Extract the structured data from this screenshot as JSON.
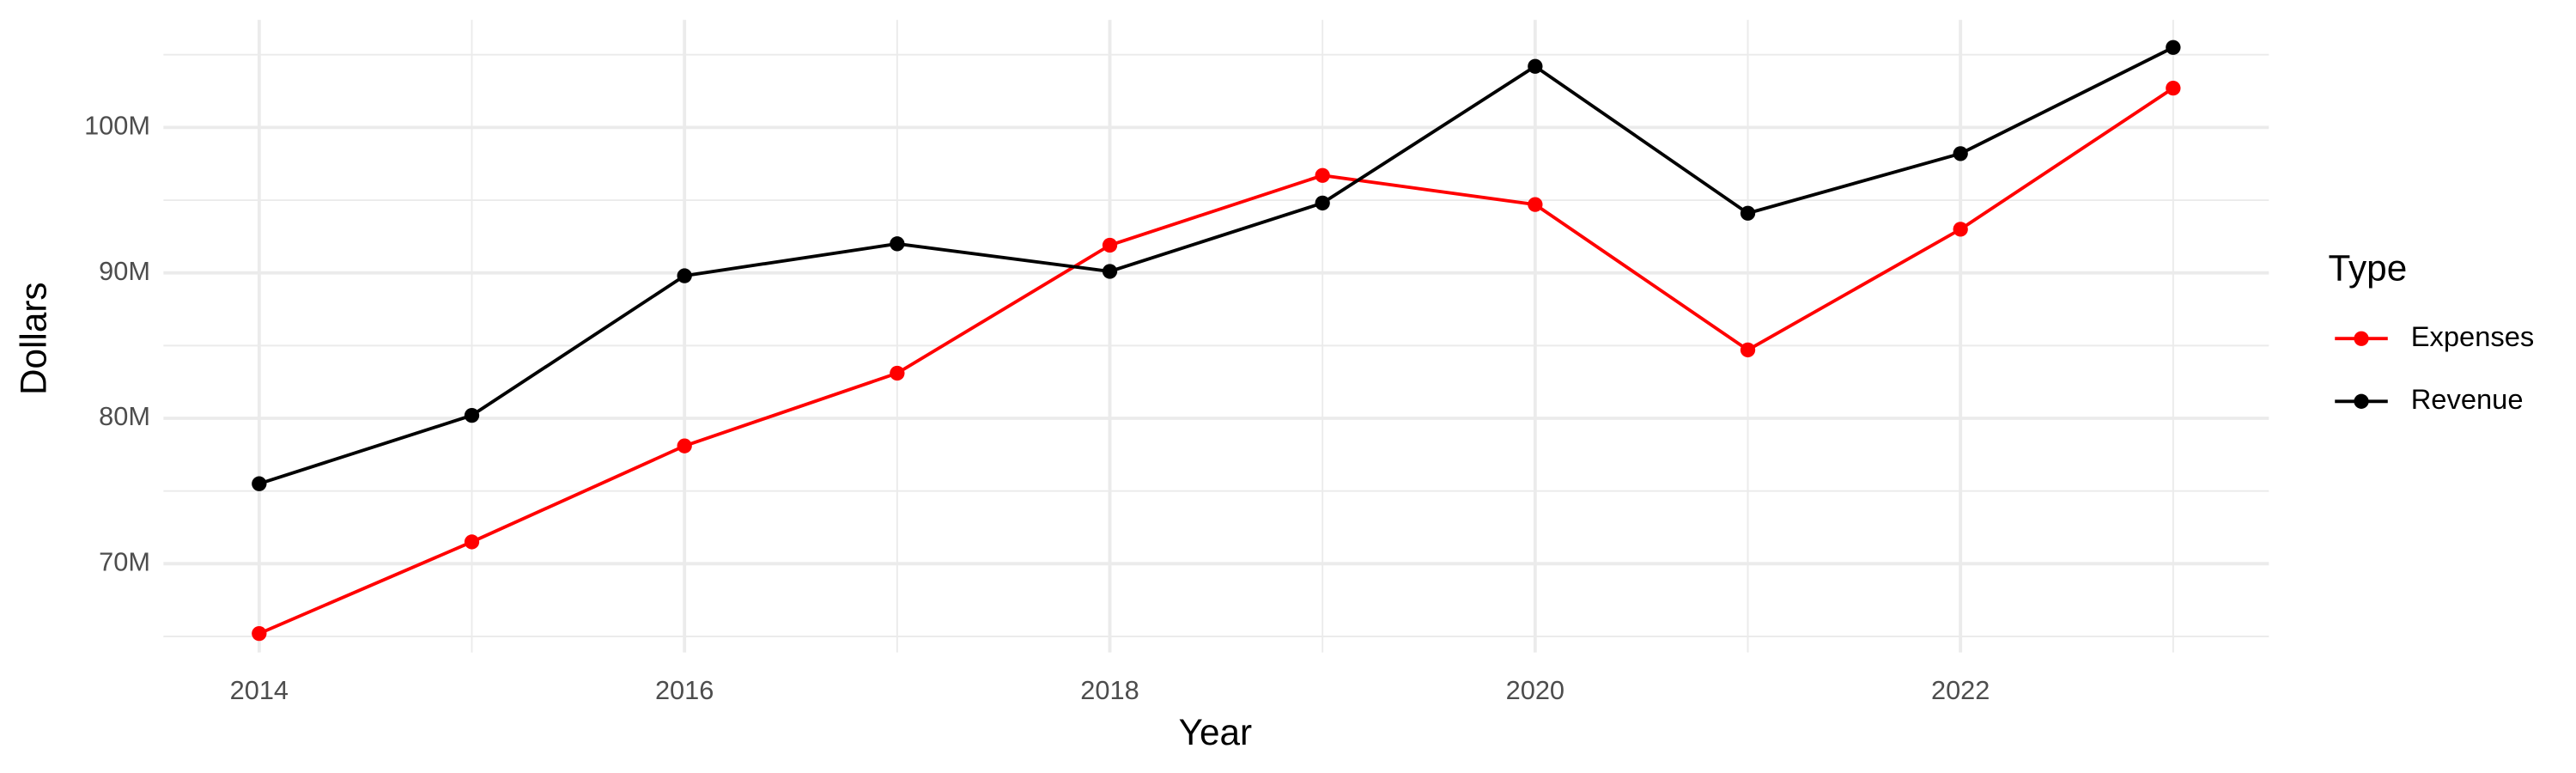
{
  "chart_data": {
    "type": "line",
    "x_label": "Year",
    "y_label": "Dollars",
    "x": [
      2014,
      2015,
      2016,
      2017,
      2018,
      2019,
      2020,
      2021,
      2022,
      2023
    ],
    "series": [
      {
        "name": "Expenses",
        "color": "#ff0000",
        "values": [
          65200000,
          71500000,
          78100000,
          83100000,
          91900000,
          96700000,
          94700000,
          84700000,
          93000000,
          102700000
        ]
      },
      {
        "name": "Revenue",
        "color": "#000000",
        "values": [
          75500000,
          80200000,
          89800000,
          92000000,
          90100000,
          94800000,
          104200000,
          94100000,
          98200000,
          105500000
        ]
      }
    ],
    "xlim": [
      2013.55,
      2023.45
    ],
    "xticks": [
      2014,
      2016,
      2018,
      2020,
      2022
    ],
    "ylim": [
      63900000,
      107400000
    ],
    "yticks": [
      {
        "value": 70000000,
        "label": "70M"
      },
      {
        "value": 80000000,
        "label": "80M"
      },
      {
        "value": 90000000,
        "label": "90M"
      },
      {
        "value": 100000000,
        "label": "100M"
      }
    ],
    "grid": true,
    "legend_title": "Type",
    "legend_position": "right"
  }
}
